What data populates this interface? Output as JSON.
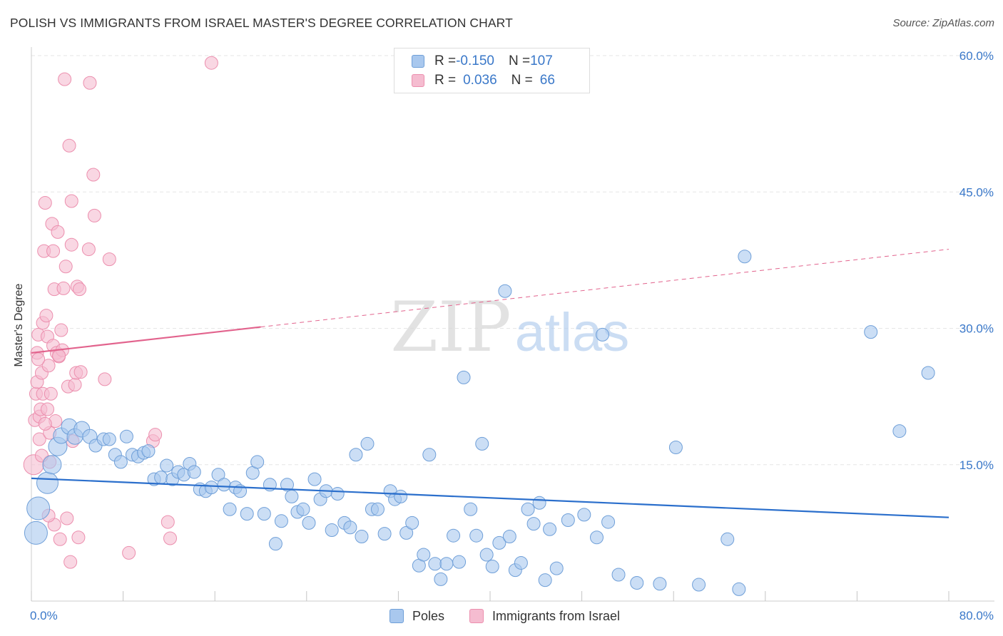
{
  "title": "POLISH VS IMMIGRANTS FROM ISRAEL MASTER'S DEGREE CORRELATION CHART",
  "source": "Source: ZipAtlas.com",
  "watermark": {
    "zip": "ZIP",
    "atlas": "atlas"
  },
  "legend": {
    "poles": {
      "r_label": "R = ",
      "r_value": "-0.150",
      "n_label": "N = ",
      "n_value": "107"
    },
    "israel": {
      "r_label": "R = ",
      "r_value": "0.036",
      "n_label": "N = ",
      "n_value": "66"
    }
  },
  "bottom_legend": {
    "poles": "Poles",
    "israel": "Immigrants from Israel"
  },
  "colors": {
    "poles_fill": "#a9c8ee",
    "poles_stroke": "#6f9fd8",
    "poles_line": "#2b6fcc",
    "israel_fill": "#f5bcd0",
    "israel_stroke": "#ec8fae",
    "israel_line": "#e2638d",
    "tick_label": "#3a78c9",
    "grid": "#e6e6e6"
  },
  "chart_data": {
    "type": "scatter",
    "xlabel": "",
    "ylabel": "Master's Degree",
    "xlim": [
      0,
      80
    ],
    "ylim": [
      0,
      60
    ],
    "x_tick_labels": {
      "0": "0.0%",
      "80": "80.0%"
    },
    "y_ticks": [
      15,
      30,
      45,
      60
    ],
    "y_tick_labels": [
      "15.0%",
      "30.0%",
      "45.0%",
      "60.0%"
    ],
    "grid": true,
    "legend_position": "top-center",
    "series": [
      {
        "name": "Poles",
        "r": -0.15,
        "n": 107,
        "trend": {
          "x": [
            0,
            80
          ],
          "y": [
            13.5,
            9.2
          ],
          "dashed_from_x": null
        },
        "points": [
          [
            0.4,
            7.5,
            16
          ],
          [
            0.6,
            10.2,
            16
          ],
          [
            1.4,
            13,
            15
          ],
          [
            1.8,
            15,
            13
          ],
          [
            2.3,
            17,
            13
          ],
          [
            2.6,
            18.2,
            11
          ],
          [
            3.3,
            19.2,
            11
          ],
          [
            3.8,
            18.1,
            11
          ],
          [
            4.4,
            18.9,
            11
          ],
          [
            5.1,
            18.1,
            10
          ],
          [
            5.6,
            17.1,
            9
          ],
          [
            6.3,
            17.8,
            9
          ],
          [
            6.8,
            17.8,
            9
          ],
          [
            7.3,
            16.1,
            9
          ],
          [
            7.8,
            15.3,
            9
          ],
          [
            8.3,
            18.1,
            9
          ],
          [
            8.8,
            16.1,
            9
          ],
          [
            9.3,
            15.9,
            9
          ],
          [
            9.8,
            16.3,
            9
          ],
          [
            10.2,
            16.5,
            9
          ],
          [
            10.7,
            13.4,
            9
          ],
          [
            11.3,
            13.6,
            9
          ],
          [
            11.8,
            14.9,
            9
          ],
          [
            12.3,
            13.4,
            9
          ],
          [
            12.8,
            14.2,
            9
          ],
          [
            13.3,
            13.9,
            9
          ],
          [
            13.8,
            15.1,
            9
          ],
          [
            14.2,
            14.2,
            9
          ],
          [
            14.7,
            12.3,
            9
          ],
          [
            15.2,
            12.1,
            9
          ],
          [
            15.7,
            12.5,
            9
          ],
          [
            16.3,
            13.9,
            9
          ],
          [
            16.8,
            12.8,
            9
          ],
          [
            17.3,
            10.1,
            9
          ],
          [
            17.8,
            12.5,
            9
          ],
          [
            18.2,
            12.1,
            9
          ],
          [
            18.8,
            9.6,
            9
          ],
          [
            19.3,
            14.1,
            9
          ],
          [
            19.7,
            15.3,
            9
          ],
          [
            20.3,
            9.6,
            9
          ],
          [
            20.8,
            12.8,
            9
          ],
          [
            21.3,
            6.3,
            9
          ],
          [
            21.8,
            8.8,
            9
          ],
          [
            22.3,
            12.8,
            9
          ],
          [
            22.7,
            11.5,
            9
          ],
          [
            23.2,
            9.8,
            9
          ],
          [
            23.7,
            10.1,
            9
          ],
          [
            24.2,
            8.6,
            9
          ],
          [
            24.7,
            13.4,
            9
          ],
          [
            25.2,
            11.2,
            9
          ],
          [
            25.7,
            12.1,
            9
          ],
          [
            26.2,
            7.8,
            9
          ],
          [
            26.7,
            11.8,
            9
          ],
          [
            27.3,
            8.6,
            9
          ],
          [
            27.8,
            8.1,
            9
          ],
          [
            28.3,
            16.1,
            9
          ],
          [
            28.8,
            7.1,
            9
          ],
          [
            29.3,
            17.3,
            9
          ],
          [
            29.7,
            10.1,
            9
          ],
          [
            30.2,
            10.1,
            9
          ],
          [
            30.8,
            7.4,
            9
          ],
          [
            31.3,
            12.1,
            9
          ],
          [
            31.7,
            11.2,
            9
          ],
          [
            32.2,
            11.5,
            9
          ],
          [
            32.7,
            7.5,
            9
          ],
          [
            33.2,
            8.6,
            9
          ],
          [
            33.8,
            3.9,
            9
          ],
          [
            34.2,
            5.1,
            9
          ],
          [
            34.7,
            16.1,
            9
          ],
          [
            35.2,
            4.1,
            9
          ],
          [
            35.7,
            2.4,
            9
          ],
          [
            36.2,
            4.1,
            9
          ],
          [
            36.8,
            7.2,
            9
          ],
          [
            37.3,
            4.3,
            9
          ],
          [
            37.7,
            24.6,
            9
          ],
          [
            38.3,
            10.1,
            9
          ],
          [
            38.8,
            7.2,
            9
          ],
          [
            39.3,
            17.3,
            9
          ],
          [
            39.7,
            5.1,
            9
          ],
          [
            40.2,
            3.8,
            9
          ],
          [
            40.8,
            6.4,
            9
          ],
          [
            41.3,
            34.1,
            9
          ],
          [
            41.7,
            7.1,
            9
          ],
          [
            42.2,
            3.4,
            9
          ],
          [
            42.7,
            4.2,
            9
          ],
          [
            43.3,
            10.1,
            9
          ],
          [
            43.8,
            8.5,
            9
          ],
          [
            44.3,
            10.8,
            9
          ],
          [
            44.8,
            2.3,
            9
          ],
          [
            45.2,
            7.9,
            9
          ],
          [
            45.8,
            3.6,
            9
          ],
          [
            46.8,
            8.9,
            9
          ],
          [
            48.2,
            9.5,
            9
          ],
          [
            49.3,
            7.0,
            9
          ],
          [
            49.8,
            29.3,
            9
          ],
          [
            50.3,
            8.7,
            9
          ],
          [
            51.2,
            2.9,
            9
          ],
          [
            52.8,
            2.0,
            9
          ],
          [
            54.8,
            1.9,
            9
          ],
          [
            56.2,
            16.9,
            9
          ],
          [
            58.2,
            1.8,
            9
          ],
          [
            60.7,
            6.8,
            9
          ],
          [
            61.7,
            1.3,
            9
          ],
          [
            62.2,
            37.9,
            9
          ],
          [
            73.2,
            29.6,
            9
          ],
          [
            75.7,
            18.7,
            9
          ],
          [
            78.2,
            25.1,
            9
          ]
        ]
      },
      {
        "name": "Immigrants from Israel",
        "r": 0.036,
        "n": 66,
        "trend": {
          "x": [
            0,
            80
          ],
          "y": [
            27.3,
            38.7
          ],
          "dashed_from_x": 20
        },
        "points": [
          [
            0.2,
            15.0,
            14
          ],
          [
            0.3,
            19.9,
            9
          ],
          [
            0.4,
            22.8,
            9
          ],
          [
            0.5,
            27.3,
            9
          ],
          [
            0.5,
            24.1,
            9
          ],
          [
            0.6,
            29.3,
            9
          ],
          [
            0.7,
            17.8,
            9
          ],
          [
            0.7,
            20.3,
            9
          ],
          [
            0.8,
            21.1,
            9
          ],
          [
            0.9,
            25.1,
            9
          ],
          [
            1.0,
            30.6,
            9
          ],
          [
            1.0,
            22.8,
            9
          ],
          [
            1.1,
            38.5,
            9
          ],
          [
            1.2,
            43.8,
            9
          ],
          [
            1.3,
            31.4,
            9
          ],
          [
            1.4,
            29.1,
            9
          ],
          [
            1.4,
            21.1,
            9
          ],
          [
            1.5,
            25.9,
            9
          ],
          [
            1.6,
            18.5,
            9
          ],
          [
            1.6,
            15.3,
            9
          ],
          [
            1.7,
            22.8,
            9
          ],
          [
            1.8,
            41.5,
            9
          ],
          [
            1.9,
            28.1,
            9
          ],
          [
            1.9,
            38.5,
            9
          ],
          [
            2.0,
            34.3,
            9
          ],
          [
            2.1,
            19.8,
            9
          ],
          [
            2.2,
            27.3,
            9
          ],
          [
            2.3,
            40.6,
            9
          ],
          [
            2.4,
            26.9,
            9
          ],
          [
            2.5,
            6.8,
            9
          ],
          [
            2.6,
            29.8,
            9
          ],
          [
            2.7,
            27.6,
            9
          ],
          [
            2.8,
            34.4,
            9
          ],
          [
            2.9,
            57.4,
            9
          ],
          [
            3.0,
            36.8,
            9
          ],
          [
            3.1,
            9.1,
            9
          ],
          [
            3.2,
            23.6,
            9
          ],
          [
            3.3,
            50.1,
            9
          ],
          [
            3.4,
            4.3,
            9
          ],
          [
            3.5,
            39.2,
            9
          ],
          [
            3.5,
            44.0,
            9
          ],
          [
            3.6,
            17.6,
            9
          ],
          [
            3.8,
            23.8,
            9
          ],
          [
            3.9,
            25.1,
            9
          ],
          [
            4.0,
            34.6,
            9
          ],
          [
            4.1,
            7.0,
            9
          ],
          [
            4.2,
            34.3,
            9
          ],
          [
            4.3,
            25.2,
            9
          ],
          [
            5.0,
            38.7,
            9
          ],
          [
            5.1,
            57.0,
            9
          ],
          [
            5.4,
            46.9,
            9
          ],
          [
            5.5,
            42.4,
            9
          ],
          [
            6.4,
            24.4,
            9
          ],
          [
            6.8,
            37.6,
            9
          ],
          [
            8.5,
            5.3,
            9
          ],
          [
            10.6,
            17.6,
            9
          ],
          [
            10.8,
            18.3,
            9
          ],
          [
            11.9,
            8.7,
            9
          ],
          [
            12.1,
            6.9,
            9
          ],
          [
            15.7,
            59.2,
            9
          ],
          [
            0.6,
            26.6,
            9
          ],
          [
            1.2,
            19.5,
            9
          ],
          [
            2.0,
            8.4,
            9
          ],
          [
            2.4,
            27.0,
            9
          ],
          [
            1.5,
            9.4,
            9
          ],
          [
            0.9,
            16.0,
            9
          ]
        ]
      }
    ]
  }
}
